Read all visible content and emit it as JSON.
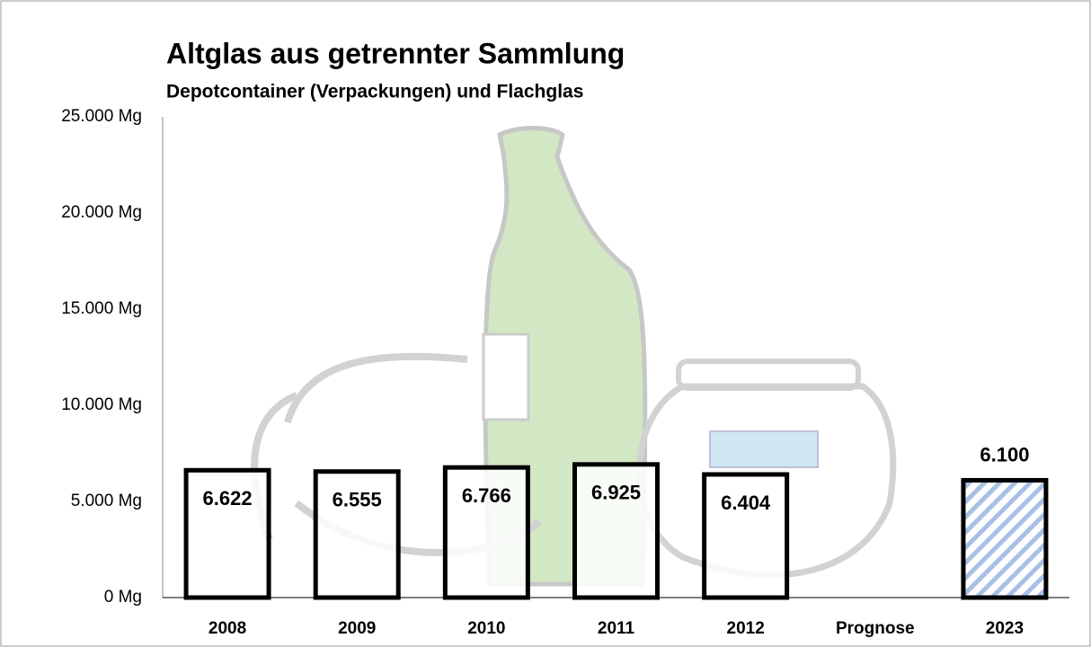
{
  "chart_data": {
    "type": "bar",
    "title": "Altglas aus getrennter Sammlung",
    "subtitle": "Depotcontainer (Verpackungen) und Flachglas",
    "categories": [
      "2008",
      "2009",
      "2010",
      "2011",
      "2012",
      "Prognose",
      "2023"
    ],
    "values": [
      6622,
      6555,
      6766,
      6925,
      6404,
      null,
      6100
    ],
    "value_labels": [
      "6.622",
      "6.555",
      "6.766",
      "6.925",
      "6.404",
      null,
      "6.100"
    ],
    "hatched": [
      false,
      false,
      false,
      false,
      false,
      false,
      true
    ],
    "color": "#ffffff",
    "hatch_color": "#a8c0e4",
    "ylim": [
      0,
      25000
    ],
    "yticks": [
      {
        "value": 0,
        "label": "0 Mg"
      },
      {
        "value": 5000,
        "label": "5.000 Mg"
      },
      {
        "value": 10000,
        "label": "10.000 Mg"
      },
      {
        "value": 15000,
        "label": "15.000 Mg"
      },
      {
        "value": 20000,
        "label": "20.000 Mg"
      },
      {
        "value": 25000,
        "label": "25.000 Mg"
      }
    ],
    "grid": false
  }
}
